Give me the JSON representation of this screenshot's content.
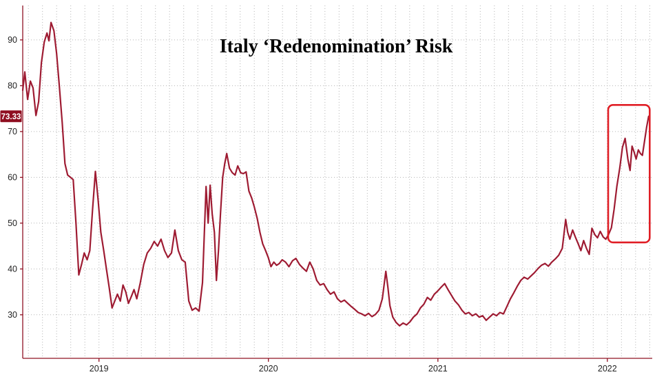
{
  "chart": {
    "current_value_label": "73.33",
    "colors": {
      "background": "#ffffff",
      "line": "#9e1b32",
      "axis": "#8f1022",
      "grid": "#b3b3b3",
      "tick_label": "#222222",
      "title": "#000000",
      "badge_bg": "#8f0e20",
      "badge_text": "#ffffff",
      "highlight_box": "#e01e25"
    }
  },
  "chart_data": {
    "type": "line",
    "title": "Italy ‘Redenomination’ Risk",
    "xlabel": "",
    "ylabel": "",
    "xlim": [
      2018.55,
      2022.265
    ],
    "ylim": [
      20.5,
      97.5
    ],
    "y_ticks": [
      30,
      40,
      50,
      60,
      70,
      80,
      90
    ],
    "x_ticks": [
      {
        "t": 2019,
        "label": "2019"
      },
      {
        "t": 2020,
        "label": "2020"
      },
      {
        "t": 2021,
        "label": "2021"
      },
      {
        "t": 2022,
        "label": "2022"
      }
    ],
    "grid": "dotted-monthly-vertical-and-decade-horizontal",
    "legend": "none",
    "last_value": 73.33,
    "highlight": {
      "t_start": 2022.005,
      "t_end": 2022.25,
      "v_low": 45.8,
      "v_high": 75.8
    },
    "series": [
      {
        "name": "Italy redenomination risk",
        "points": [
          [
            2018.55,
            79.0
          ],
          [
            2018.562,
            83.0
          ],
          [
            2018.579,
            77.0
          ],
          [
            2018.595,
            81.0
          ],
          [
            2018.611,
            79.5
          ],
          [
            2018.628,
            73.5
          ],
          [
            2018.644,
            76.5
          ],
          [
            2018.66,
            85.0
          ],
          [
            2018.677,
            89.5
          ],
          [
            2018.693,
            91.5
          ],
          [
            2018.705,
            89.8
          ],
          [
            2018.717,
            93.8
          ],
          [
            2018.734,
            92.0
          ],
          [
            2018.75,
            87.0
          ],
          [
            2018.766,
            80.0
          ],
          [
            2018.783,
            72.0
          ],
          [
            2018.799,
            63.0
          ],
          [
            2018.815,
            60.5
          ],
          [
            2018.832,
            60.0
          ],
          [
            2018.848,
            59.5
          ],
          [
            2018.864,
            50.0
          ],
          [
            2018.881,
            38.7
          ],
          [
            2018.897,
            41.0
          ],
          [
            2018.913,
            43.5
          ],
          [
            2018.93,
            42.0
          ],
          [
            2018.946,
            44.0
          ],
          [
            2018.962,
            53.0
          ],
          [
            2018.979,
            61.3
          ],
          [
            2018.995,
            55.0
          ],
          [
            2019.011,
            48.0
          ],
          [
            2019.028,
            44.0
          ],
          [
            2019.044,
            40.0
          ],
          [
            2019.06,
            36.0
          ],
          [
            2019.077,
            31.5
          ],
          [
            2019.093,
            33.0
          ],
          [
            2019.109,
            34.5
          ],
          [
            2019.126,
            33.0
          ],
          [
            2019.142,
            36.5
          ],
          [
            2019.158,
            35.0
          ],
          [
            2019.174,
            32.5
          ],
          [
            2019.191,
            34.0
          ],
          [
            2019.207,
            35.5
          ],
          [
            2019.223,
            33.5
          ],
          [
            2019.244,
            37.0
          ],
          [
            2019.264,
            41.0
          ],
          [
            2019.285,
            43.5
          ],
          [
            2019.305,
            44.5
          ],
          [
            2019.326,
            46.0
          ],
          [
            2019.346,
            45.0
          ],
          [
            2019.366,
            46.5
          ],
          [
            2019.387,
            44.0
          ],
          [
            2019.407,
            42.5
          ],
          [
            2019.428,
            43.5
          ],
          [
            2019.448,
            48.5
          ],
          [
            2019.468,
            44.0
          ],
          [
            2019.489,
            42.0
          ],
          [
            2019.509,
            41.5
          ],
          [
            2019.53,
            33.0
          ],
          [
            2019.55,
            31.0
          ],
          [
            2019.57,
            31.5
          ],
          [
            2019.591,
            30.8
          ],
          [
            2019.611,
            37.0
          ],
          [
            2019.632,
            58.0
          ],
          [
            2019.644,
            50.0
          ],
          [
            2019.656,
            58.3
          ],
          [
            2019.668,
            52.0
          ],
          [
            2019.681,
            48.0
          ],
          [
            2019.693,
            37.5
          ],
          [
            2019.705,
            44.0
          ],
          [
            2019.717,
            52.0
          ],
          [
            2019.73,
            60.0
          ],
          [
            2019.742,
            63.0
          ],
          [
            2019.754,
            65.2
          ],
          [
            2019.77,
            62.0
          ],
          [
            2019.787,
            61.0
          ],
          [
            2019.803,
            60.5
          ],
          [
            2019.819,
            62.5
          ],
          [
            2019.836,
            61.0
          ],
          [
            2019.852,
            60.8
          ],
          [
            2019.868,
            61.2
          ],
          [
            2019.885,
            57.0
          ],
          [
            2019.901,
            55.5
          ],
          [
            2019.917,
            53.5
          ],
          [
            2019.934,
            51.0
          ],
          [
            2019.95,
            48.0
          ],
          [
            2019.966,
            45.5
          ],
          [
            2019.983,
            44.0
          ],
          [
            2019.999,
            42.5
          ],
          [
            2020.015,
            40.5
          ],
          [
            2020.032,
            41.5
          ],
          [
            2020.048,
            40.8
          ],
          [
            2020.064,
            41.2
          ],
          [
            2020.081,
            42.0
          ],
          [
            2020.101,
            41.5
          ],
          [
            2020.121,
            40.5
          ],
          [
            2020.142,
            41.8
          ],
          [
            2020.162,
            42.3
          ],
          [
            2020.183,
            41.0
          ],
          [
            2020.203,
            40.2
          ],
          [
            2020.224,
            39.5
          ],
          [
            2020.244,
            41.5
          ],
          [
            2020.264,
            40.0
          ],
          [
            2020.285,
            37.5
          ],
          [
            2020.305,
            36.5
          ],
          [
            2020.326,
            36.8
          ],
          [
            2020.346,
            35.5
          ],
          [
            2020.366,
            34.5
          ],
          [
            2020.387,
            35.0
          ],
          [
            2020.407,
            33.5
          ],
          [
            2020.428,
            32.8
          ],
          [
            2020.448,
            33.2
          ],
          [
            2020.468,
            32.5
          ],
          [
            2020.489,
            31.8
          ],
          [
            2020.509,
            31.2
          ],
          [
            2020.53,
            30.5
          ],
          [
            2020.55,
            30.2
          ],
          [
            2020.57,
            29.8
          ],
          [
            2020.591,
            30.3
          ],
          [
            2020.611,
            29.6
          ],
          [
            2020.632,
            30.1
          ],
          [
            2020.652,
            31.0
          ],
          [
            2020.672,
            33.5
          ],
          [
            2020.693,
            39.5
          ],
          [
            2020.705,
            36.0
          ],
          [
            2020.717,
            32.0
          ],
          [
            2020.734,
            29.5
          ],
          [
            2020.754,
            28.3
          ],
          [
            2020.774,
            27.6
          ],
          [
            2020.795,
            28.2
          ],
          [
            2020.815,
            27.8
          ],
          [
            2020.836,
            28.5
          ],
          [
            2020.856,
            29.5
          ],
          [
            2020.877,
            30.2
          ],
          [
            2020.897,
            31.5
          ],
          [
            2020.917,
            32.3
          ],
          [
            2020.938,
            33.8
          ],
          [
            2020.958,
            33.2
          ],
          [
            2020.979,
            34.5
          ],
          [
            2020.999,
            35.2
          ],
          [
            2021.019,
            36.0
          ],
          [
            2021.04,
            36.8
          ],
          [
            2021.06,
            35.5
          ],
          [
            2021.081,
            34.2
          ],
          [
            2021.101,
            33.0
          ],
          [
            2021.121,
            32.2
          ],
          [
            2021.142,
            31.0
          ],
          [
            2021.162,
            30.2
          ],
          [
            2021.183,
            30.5
          ],
          [
            2021.203,
            29.8
          ],
          [
            2021.224,
            30.2
          ],
          [
            2021.244,
            29.5
          ],
          [
            2021.264,
            29.8
          ],
          [
            2021.285,
            28.8
          ],
          [
            2021.305,
            29.5
          ],
          [
            2021.326,
            30.2
          ],
          [
            2021.346,
            29.8
          ],
          [
            2021.366,
            30.5
          ],
          [
            2021.387,
            30.2
          ],
          [
            2021.407,
            31.8
          ],
          [
            2021.428,
            33.5
          ],
          [
            2021.448,
            34.8
          ],
          [
            2021.468,
            36.2
          ],
          [
            2021.489,
            37.5
          ],
          [
            2021.509,
            38.2
          ],
          [
            2021.53,
            37.8
          ],
          [
            2021.55,
            38.5
          ],
          [
            2021.57,
            39.2
          ],
          [
            2021.591,
            40.1
          ],
          [
            2021.611,
            40.8
          ],
          [
            2021.632,
            41.2
          ],
          [
            2021.652,
            40.6
          ],
          [
            2021.672,
            41.5
          ],
          [
            2021.693,
            42.2
          ],
          [
            2021.713,
            43.0
          ],
          [
            2021.734,
            44.5
          ],
          [
            2021.754,
            50.8
          ],
          [
            2021.766,
            48.0
          ],
          [
            2021.779,
            46.5
          ],
          [
            2021.795,
            48.5
          ],
          [
            2021.811,
            47.0
          ],
          [
            2021.828,
            45.5
          ],
          [
            2021.844,
            44.0
          ],
          [
            2021.86,
            46.2
          ],
          [
            2021.877,
            44.5
          ],
          [
            2021.893,
            43.2
          ],
          [
            2021.909,
            48.9
          ],
          [
            2021.926,
            47.5
          ],
          [
            2021.942,
            46.8
          ],
          [
            2021.958,
            48.2
          ],
          [
            2021.975,
            47.0
          ],
          [
            2021.991,
            46.5
          ],
          [
            2022.007,
            47.5
          ],
          [
            2022.024,
            49.0
          ],
          [
            2022.04,
            53.0
          ],
          [
            2022.056,
            58.0
          ],
          [
            2022.073,
            62.0
          ],
          [
            2022.089,
            66.5
          ],
          [
            2022.105,
            68.5
          ],
          [
            2022.121,
            64.0
          ],
          [
            2022.134,
            61.5
          ],
          [
            2022.146,
            66.8
          ],
          [
            2022.158,
            65.5
          ],
          [
            2022.17,
            64.0
          ],
          [
            2022.183,
            66.0
          ],
          [
            2022.195,
            65.2
          ],
          [
            2022.207,
            64.8
          ],
          [
            2022.22,
            68.0
          ],
          [
            2022.232,
            71.0
          ],
          [
            2022.244,
            73.33
          ]
        ]
      }
    ]
  }
}
